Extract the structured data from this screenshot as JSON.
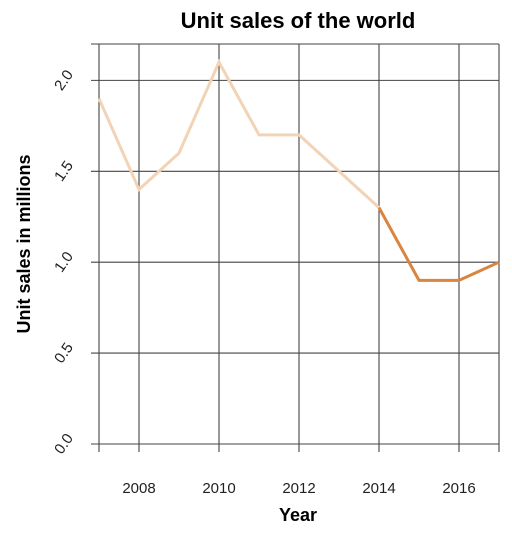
{
  "chart_data": {
    "type": "line",
    "title": "Unit sales of the world",
    "xlabel": "Year",
    "ylabel": "Unit sales in millions",
    "x_ticks": [
      2008,
      2010,
      2012,
      2014,
      2016
    ],
    "y_ticks": [
      0.0,
      0.5,
      1.0,
      1.5,
      2.0
    ],
    "y_tick_labels": [
      "0.0",
      "0.5",
      "1.0",
      "1.5",
      "2.0"
    ],
    "xlim": [
      2007,
      2017
    ],
    "ylim": [
      0,
      2.2
    ],
    "grid": true,
    "legend": "none",
    "series": [
      {
        "x": [
          2007,
          2008,
          2009,
          2010,
          2011,
          2012,
          2013,
          2014
        ],
        "values": [
          1.9,
          1.4,
          1.6,
          2.1,
          1.7,
          1.7,
          1.5,
          1.3
        ],
        "color": "#f2d3b6"
      },
      {
        "x": [
          2014,
          2015,
          2016,
          2017
        ],
        "values": [
          1.3,
          0.9,
          0.9,
          1.0
        ],
        "color": "#d9843f"
      }
    ]
  }
}
